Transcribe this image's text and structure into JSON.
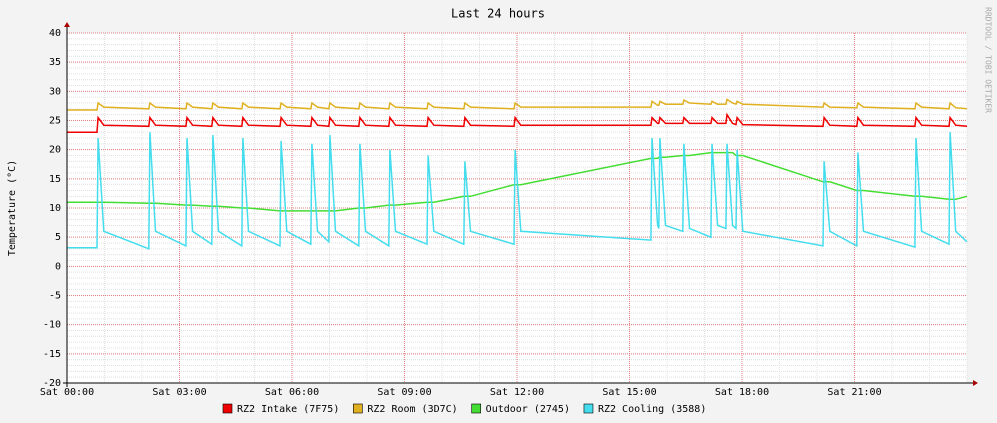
{
  "chart_data": {
    "type": "line",
    "title": "Last 24 hours",
    "y_label": "Temperature (°C)",
    "watermark": "RRDTOOL / TOBI OETIKER",
    "xlim": [
      0,
      24
    ],
    "ylim": [
      -20,
      40
    ],
    "xticks": [
      {
        "value": 0,
        "label": "Sat 00:00"
      },
      {
        "value": 3,
        "label": "Sat 03:00"
      },
      {
        "value": 6,
        "label": "Sat 06:00"
      },
      {
        "value": 9,
        "label": "Sat 09:00"
      },
      {
        "value": 12,
        "label": "Sat 12:00"
      },
      {
        "value": 15,
        "label": "Sat 15:00"
      },
      {
        "value": 18,
        "label": "Sat 18:00"
      },
      {
        "value": 21,
        "label": "Sat 21:00"
      }
    ],
    "yticks": [
      -20,
      -15,
      -10,
      -5,
      0,
      5,
      10,
      15,
      20,
      25,
      30,
      35,
      40
    ],
    "grid": true,
    "x": [
      0,
      0.8,
      0.83,
      0.98,
      2.18,
      2.21,
      2.36,
      3.17,
      3.2,
      3.35,
      3.86,
      3.89,
      4.04,
      4.66,
      4.69,
      4.84,
      5.68,
      5.71,
      5.86,
      6.5,
      6.53,
      6.68,
      6.98,
      7.01,
      7.16,
      7.78,
      7.81,
      7.96,
      8.58,
      8.61,
      8.76,
      9.6,
      9.63,
      9.78,
      10.58,
      10.61,
      10.76,
      11.92,
      11.95,
      12.1,
      15.57,
      15.6,
      15.75,
      15.78,
      15.81,
      15.96,
      16.42,
      16.45,
      16.6,
      17.17,
      17.2,
      17.35,
      17.57,
      17.6,
      17.75,
      17.84,
      17.87,
      18.02,
      20.16,
      20.19,
      20.34,
      21.06,
      21.09,
      21.24,
      22.61,
      22.64,
      22.79,
      23.52,
      23.55,
      23.7,
      24
    ],
    "series": [
      {
        "name": "RZ2 Intake (7F75)",
        "color": "#ee0000",
        "values": [
          23,
          23,
          25.5,
          24.2,
          24,
          25.5,
          24.2,
          24,
          25.5,
          24.2,
          24,
          25.5,
          24.2,
          24,
          25.5,
          24.2,
          24,
          25.5,
          24.2,
          24,
          25.5,
          24.2,
          24,
          25.5,
          24.2,
          24,
          25.5,
          24.2,
          24,
          25.5,
          24.2,
          24,
          25.5,
          24.2,
          24,
          25.5,
          24.2,
          24,
          25.5,
          24.2,
          24.2,
          25.5,
          24.5,
          24.5,
          25.5,
          24.5,
          24.5,
          25.5,
          24.5,
          24.5,
          25.5,
          24.5,
          24.5,
          26,
          24.5,
          24.3,
          25.5,
          24.3,
          24,
          25.5,
          24.2,
          24,
          25.5,
          24.2,
          24,
          25.5,
          24.2,
          24,
          25.5,
          24.2,
          24
        ]
      },
      {
        "name": "RZ2 Room (3D7C)",
        "color": "#e0b020",
        "values": [
          26.8,
          26.8,
          28,
          27.3,
          27,
          28,
          27.3,
          27,
          28,
          27.3,
          27,
          28,
          27.3,
          27,
          28,
          27.3,
          27,
          28,
          27.3,
          27,
          28,
          27.3,
          27,
          28,
          27.3,
          27,
          28,
          27.3,
          27,
          28,
          27.3,
          27,
          28,
          27.3,
          27,
          28,
          27.3,
          27,
          28,
          27.3,
          27.3,
          28.3,
          27.6,
          27.6,
          28.3,
          27.8,
          27.8,
          28.5,
          28,
          27.8,
          28.3,
          27.8,
          27.8,
          28.6,
          28,
          27.8,
          28.3,
          27.8,
          27.3,
          28,
          27.3,
          27.2,
          28,
          27.3,
          27,
          28,
          27.3,
          27,
          28,
          27.2,
          27
        ]
      },
      {
        "name": "Outdoor (2745)",
        "color": "#44dd33",
        "values": [
          11,
          11,
          11,
          11,
          10.8,
          10.8,
          10.8,
          10.5,
          10.5,
          10.5,
          10.3,
          10.3,
          10.3,
          10,
          10,
          10,
          9.5,
          9.5,
          9.5,
          9.5,
          9.5,
          9.5,
          9.5,
          9.5,
          9.5,
          10,
          10,
          10,
          10.5,
          10.5,
          10.5,
          11,
          11,
          11,
          12,
          12,
          12,
          14,
          14,
          14,
          18.5,
          18.5,
          18.5,
          18.7,
          18.7,
          18.7,
          19,
          19,
          19,
          19.5,
          19.5,
          19.5,
          19.5,
          19.5,
          19.5,
          19,
          19,
          19,
          14.5,
          14.5,
          14.5,
          13,
          13,
          13,
          12,
          12,
          12,
          11.5,
          11.5,
          11.5,
          12
        ]
      },
      {
        "name": "RZ2 Cooling (3588)",
        "color": "#44ddee",
        "values": [
          3.2,
          3.2,
          22,
          6,
          3,
          23,
          6,
          3.5,
          22,
          6,
          3.8,
          22.5,
          6,
          3.5,
          22,
          6,
          3.5,
          21.5,
          6,
          3.8,
          21,
          6,
          4.2,
          22.5,
          6,
          3.5,
          21,
          6,
          3.5,
          20,
          6,
          3.8,
          19,
          6,
          3.8,
          18,
          6,
          3.8,
          20,
          6,
          4.5,
          22,
          7,
          6.5,
          22,
          7,
          6,
          21,
          6.5,
          5,
          21,
          7,
          6.5,
          21,
          7,
          6.5,
          20,
          6,
          3.5,
          18,
          6,
          3.5,
          19.5,
          6,
          3.3,
          22,
          6,
          3.8,
          23,
          6,
          4.2
        ]
      }
    ]
  }
}
